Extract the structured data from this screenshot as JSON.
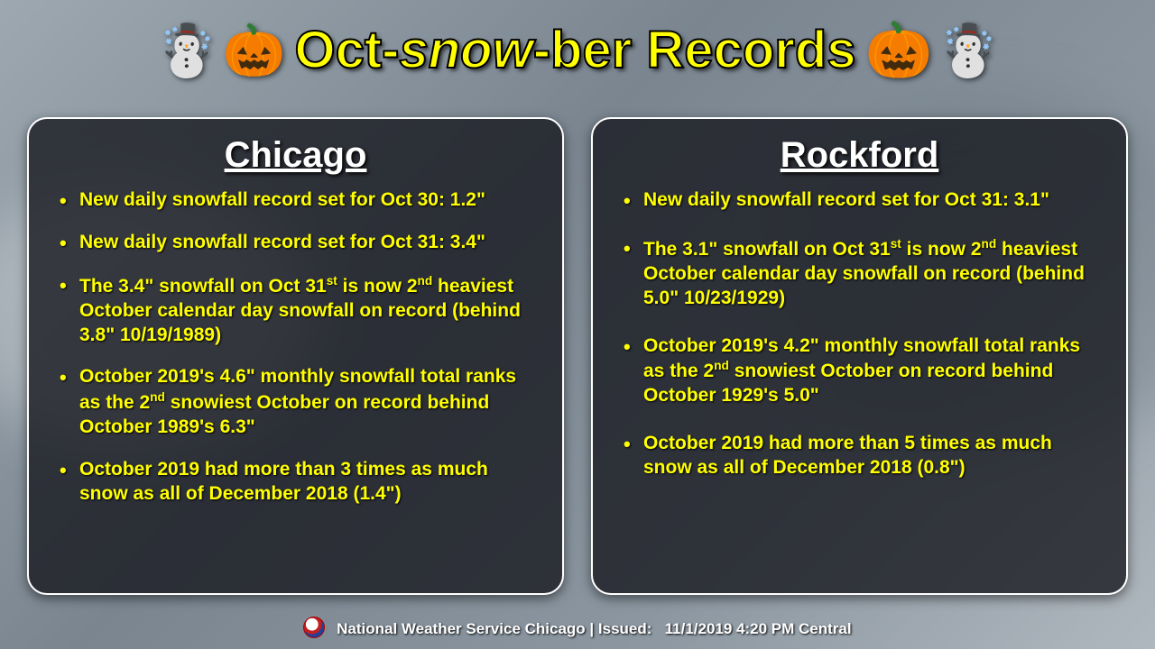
{
  "title_html": "Oct-<em>snow</em>-ber Records",
  "colors": {
    "title_text": "#ffff00",
    "title_stroke": "#000000",
    "panel_bg": "rgba(20,22,28,0.78)",
    "panel_border": "#ffffff",
    "panel_heading": "#ffffff",
    "bullet_text": "#ffff00",
    "footer_text": "#ffffff"
  },
  "icons": {
    "left": [
      "☃️",
      "🎃"
    ],
    "right": [
      "🎃",
      "☃️"
    ]
  },
  "panels": [
    {
      "heading": "Chicago",
      "bullets": [
        "New daily snowfall record set for Oct 30: 1.2\"",
        "New daily snowfall record set for Oct 31: 3.4\"",
        "The 3.4\" snowfall on Oct 31<sup>st</sup> is now 2<sup>nd</sup> heaviest October calendar day snowfall on record (behind 3.8\" 10/19/1989)",
        "October 2019's 4.6\" monthly snowfall total ranks as the 2<sup>nd</sup> snowiest October on record behind October 1989's 6.3\"",
        "October 2019 had more than 3 times as much snow as all of December 2018 (1.4\")"
      ]
    },
    {
      "heading": "Rockford",
      "bullets": [
        "New daily snowfall record set for Oct 31: 3.1\"",
        "The 3.1\" snowfall on Oct 31<sup>st</sup> is now 2<sup>nd</sup> heaviest October calendar day snowfall on record (behind 5.0\" 10/23/1929)",
        "October 2019's 4.2\" monthly snowfall total ranks as the 2<sup>nd</sup> snowiest October on record behind October 1929's 5.0\"",
        "October 2019 had more than 5 times as much snow as all of December 2018 (0.8\")"
      ]
    }
  ],
  "footer": {
    "org": "National Weather Service Chicago",
    "separator": " | ",
    "issued_label": "Issued:",
    "issued_value": "11/1/2019 4:20 PM Central"
  }
}
